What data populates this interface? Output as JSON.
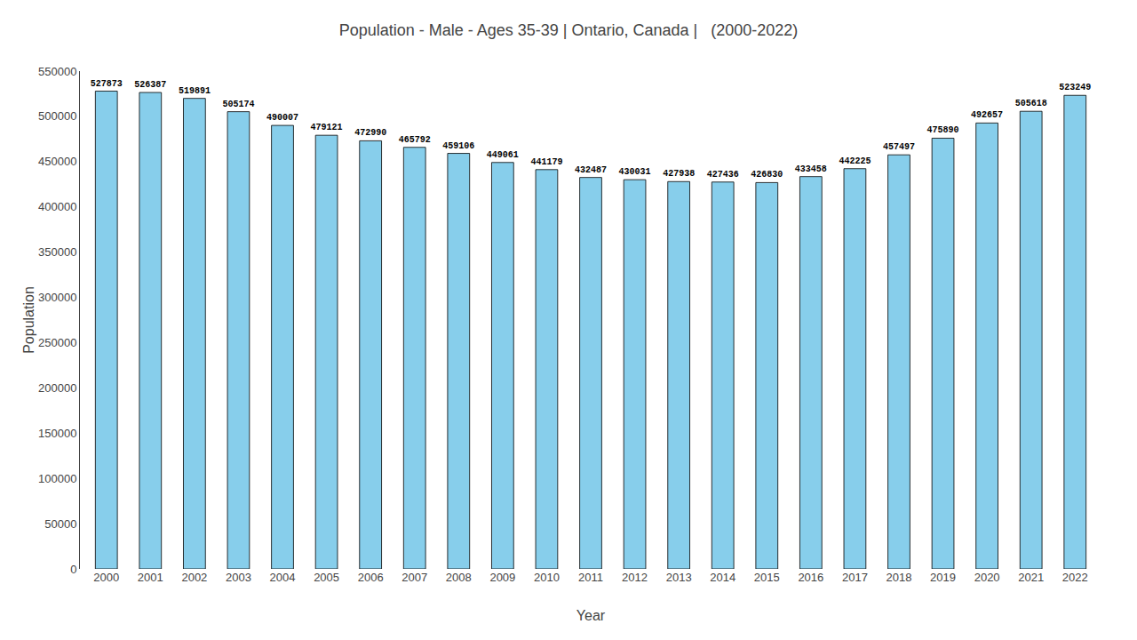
{
  "chart_data": {
    "type": "bar",
    "title": "Population - Male - Ages 35-39 | Ontario, Canada |   (2000-2022)",
    "xlabel": "Year",
    "ylabel": "Population",
    "categories": [
      "2000",
      "2001",
      "2002",
      "2003",
      "2004",
      "2005",
      "2006",
      "2007",
      "2008",
      "2009",
      "2010",
      "2011",
      "2012",
      "2013",
      "2014",
      "2015",
      "2016",
      "2017",
      "2018",
      "2019",
      "2020",
      "2021",
      "2022"
    ],
    "values": [
      527873,
      526387,
      519891,
      505174,
      490007,
      479121,
      472990,
      465792,
      459106,
      449061,
      441179,
      432487,
      430031,
      427938,
      427436,
      426830,
      433458,
      442225,
      457497,
      475890,
      492657,
      505618,
      523249
    ],
    "color": "#87CEEB",
    "ylim": [
      0,
      550000
    ],
    "yticks": [
      0,
      50000,
      100000,
      150000,
      200000,
      250000,
      300000,
      350000,
      400000,
      450000,
      500000,
      550000
    ],
    "grid": false,
    "data_labels": true
  }
}
